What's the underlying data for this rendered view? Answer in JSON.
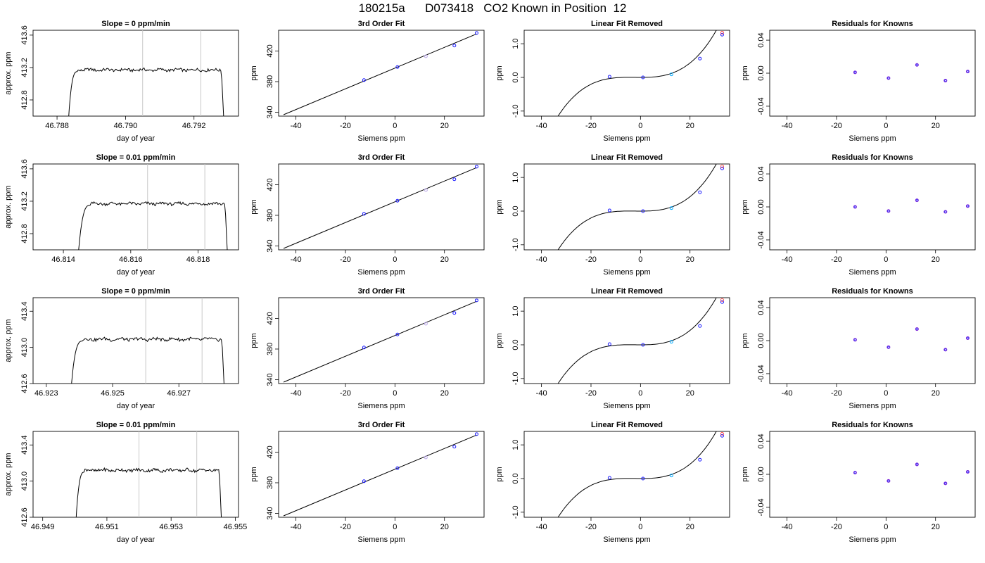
{
  "page_title": "180215a      D073418   CO2 Known in Position  12",
  "colors": {
    "curve": "#000000",
    "marker_light": "#b7a4e6",
    "grid_line": "#c8c8c8",
    "point": "#1a1aff",
    "point_accent": "#00aaff",
    "point_red": "#ff2a2a"
  },
  "rows": [
    {
      "raw": {
        "title": "Slope =  0  ppm/min",
        "xlabel": "day of year",
        "ylabel": "approx. ppm",
        "xlim": [
          46.7873,
          46.7933
        ],
        "ylim": [
          412.6,
          413.66
        ],
        "xticks": [
          46.788,
          46.79,
          46.792
        ],
        "xtick_labels": [
          "46.788",
          "46.790",
          "46.792"
        ],
        "yticks": [
          412.8,
          413.2,
          413.6
        ],
        "ytick_labels": [
          "412.8",
          "413.2",
          "413.6"
        ],
        "vlines": [
          46.7905,
          46.7922
        ],
        "plateau_x": [
          46.7886,
          46.7928
        ],
        "plateau_level": 413.17,
        "start_x": 46.7883,
        "end_x": 46.7929
      },
      "fit": {
        "title": "3rd Order Fit",
        "xlabel": "Siemens ppm",
        "ylabel": "ppm",
        "xlim": [
          -47,
          36
        ],
        "ylim": [
          335,
          447
        ],
        "xticks": [
          -40,
          -20,
          0,
          20
        ],
        "xtick_labels": [
          "-40",
          "-20",
          "0",
          "20"
        ],
        "yticks": [
          340,
          380,
          420
        ],
        "ytick_labels": [
          "340",
          "380",
          "420"
        ],
        "line_x": [
          -45,
          33
        ],
        "points": [
          {
            "x": -12.5,
            "y": 382
          },
          {
            "x": 1,
            "y": 399
          },
          {
            "x": 12.5,
            "y": 413
          },
          {
            "x": 24,
            "y": 427
          },
          {
            "x": 33,
            "y": 443.5
          }
        ]
      },
      "linear": {
        "title": "Linear Fit Removed",
        "xlabel": "Siemens ppm",
        "ylabel": "ppm",
        "xlim": [
          -47,
          36
        ],
        "ylim": [
          -1.15,
          1.4
        ],
        "xticks": [
          -40,
          -20,
          0,
          20
        ],
        "xtick_labels": [
          "-40",
          "-20",
          "0",
          "20"
        ],
        "yticks": [
          -1.0,
          0.0,
          1.0
        ],
        "ytick_labels": [
          "-1.0",
          "0.0",
          "1.0"
        ],
        "curve_x": [
          -45,
          33
        ],
        "points": [
          {
            "x": -12.5,
            "y": 0.02
          },
          {
            "x": 1,
            "y": 0.0
          },
          {
            "x": 12.5,
            "y": 0.09
          },
          {
            "x": 24,
            "y": 0.56
          },
          {
            "x": 33,
            "y": 1.27
          }
        ]
      },
      "resid": {
        "title": "Residuals for Knowns",
        "xlabel": "Siemens ppm",
        "ylabel": "ppm",
        "xlim": [
          -47,
          36
        ],
        "ylim": [
          -0.052,
          0.052
        ],
        "xticks": [
          -40,
          -20,
          0,
          20
        ],
        "xtick_labels": [
          "-40",
          "-20",
          "0",
          "20"
        ],
        "yticks": [
          -0.04,
          0.0,
          0.04
        ],
        "ytick_labels": [
          "-0.04",
          "0.00",
          "0.04"
        ],
        "points": [
          {
            "x": -12.5,
            "y": 0.001
          },
          {
            "x": 1,
            "y": -0.006
          },
          {
            "x": 12.5,
            "y": 0.01
          },
          {
            "x": 24,
            "y": -0.009
          },
          {
            "x": 33,
            "y": 0.002
          }
        ]
      }
    },
    {
      "raw": {
        "title": "Slope =  0.01  ppm/min",
        "xlabel": "day of year",
        "ylabel": "approx. ppm",
        "xlim": [
          46.8131,
          46.8192
        ],
        "ylim": [
          412.6,
          413.66
        ],
        "xticks": [
          46.814,
          46.816,
          46.818
        ],
        "xtick_labels": [
          "46.814",
          "46.816",
          "46.818"
        ],
        "yticks": [
          412.8,
          413.2,
          413.6
        ],
        "ytick_labels": [
          "412.8",
          "413.2",
          "413.6"
        ],
        "vlines": [
          46.8165,
          46.8182
        ],
        "plateau_x": [
          46.8148,
          46.8188
        ],
        "plateau_level": 413.17,
        "start_x": 46.8144,
        "end_x": 46.8189
      },
      "fit": {
        "title": "3rd Order Fit",
        "xlabel": "Siemens ppm",
        "ylabel": "ppm",
        "xlim": [
          -47,
          36
        ],
        "ylim": [
          335,
          447
        ],
        "xticks": [
          -40,
          -20,
          0,
          20
        ],
        "xtick_labels": [
          "-40",
          "-20",
          "0",
          "20"
        ],
        "yticks": [
          340,
          380,
          420
        ],
        "ytick_labels": [
          "340",
          "380",
          "420"
        ],
        "line_x": [
          -45,
          33
        ],
        "points": [
          {
            "x": -12.5,
            "y": 382
          },
          {
            "x": 1,
            "y": 399
          },
          {
            "x": 12.5,
            "y": 413
          },
          {
            "x": 24,
            "y": 427
          },
          {
            "x": 33,
            "y": 443.5
          }
        ]
      },
      "linear": {
        "title": "Linear Fit Removed",
        "xlabel": "Siemens ppm",
        "ylabel": "ppm",
        "xlim": [
          -47,
          36
        ],
        "ylim": [
          -1.15,
          1.4
        ],
        "xticks": [
          -40,
          -20,
          0,
          20
        ],
        "xtick_labels": [
          "-40",
          "-20",
          "0",
          "20"
        ],
        "yticks": [
          -1.0,
          0.0,
          1.0
        ],
        "ytick_labels": [
          "-1.0",
          "0.0",
          "1.0"
        ],
        "curve_x": [
          -45,
          33
        ],
        "points": [
          {
            "x": -12.5,
            "y": 0.02
          },
          {
            "x": 1,
            "y": 0.0
          },
          {
            "x": 12.5,
            "y": 0.09
          },
          {
            "x": 24,
            "y": 0.56
          },
          {
            "x": 33,
            "y": 1.27
          }
        ]
      },
      "resid": {
        "title": "Residuals for Knowns",
        "xlabel": "Siemens ppm",
        "ylabel": "ppm",
        "xlim": [
          -47,
          36
        ],
        "ylim": [
          -0.052,
          0.052
        ],
        "xticks": [
          -40,
          -20,
          0,
          20
        ],
        "xtick_labels": [
          "-40",
          "-20",
          "0",
          "20"
        ],
        "yticks": [
          -0.04,
          0.0,
          0.04
        ],
        "ytick_labels": [
          "-0.04",
          "0.00",
          "0.04"
        ],
        "points": [
          {
            "x": -12.5,
            "y": 0.0
          },
          {
            "x": 1,
            "y": -0.005
          },
          {
            "x": 12.5,
            "y": 0.008
          },
          {
            "x": 24,
            "y": -0.006
          },
          {
            "x": 33,
            "y": 0.001
          }
        ]
      }
    },
    {
      "raw": {
        "title": "Slope =  0  ppm/min",
        "xlabel": "day of year",
        "ylabel": "approx. ppm",
        "xlim": [
          46.9226,
          46.9288
        ],
        "ylim": [
          412.6,
          413.55
        ],
        "xticks": [
          46.923,
          46.925,
          46.927
        ],
        "xtick_labels": [
          "46.923",
          "46.925",
          "46.927"
        ],
        "yticks": [
          412.6,
          413.0,
          413.4
        ],
        "ytick_labels": [
          "412.6",
          "413.0",
          "413.4"
        ],
        "vlines": [
          46.926,
          46.9277
        ],
        "plateau_x": [
          46.9241,
          46.9283
        ],
        "plateau_level": 413.09,
        "start_x": 46.9237,
        "end_x": 46.9284
      },
      "fit": {
        "title": "3rd Order Fit",
        "xlabel": "Siemens ppm",
        "ylabel": "ppm",
        "xlim": [
          -47,
          36
        ],
        "ylim": [
          335,
          447
        ],
        "xticks": [
          -40,
          -20,
          0,
          20
        ],
        "xtick_labels": [
          "-40",
          "-20",
          "0",
          "20"
        ],
        "yticks": [
          340,
          380,
          420
        ],
        "ytick_labels": [
          "340",
          "380",
          "420"
        ],
        "line_x": [
          -45,
          33
        ],
        "points": [
          {
            "x": -12.5,
            "y": 382
          },
          {
            "x": 1,
            "y": 399
          },
          {
            "x": 12.5,
            "y": 413
          },
          {
            "x": 24,
            "y": 427
          },
          {
            "x": 33,
            "y": 443.5
          }
        ]
      },
      "linear": {
        "title": "Linear Fit Removed",
        "xlabel": "Siemens ppm",
        "ylabel": "ppm",
        "xlim": [
          -47,
          36
        ],
        "ylim": [
          -1.15,
          1.4
        ],
        "xticks": [
          -40,
          -20,
          0,
          20
        ],
        "xtick_labels": [
          "-40",
          "-20",
          "0",
          "20"
        ],
        "yticks": [
          -1.0,
          0.0,
          1.0
        ],
        "ytick_labels": [
          "-1.0",
          "0.0",
          "1.0"
        ],
        "curve_x": [
          -45,
          33
        ],
        "points": [
          {
            "x": -12.5,
            "y": 0.02
          },
          {
            "x": 1,
            "y": 0.0
          },
          {
            "x": 12.5,
            "y": 0.09
          },
          {
            "x": 24,
            "y": 0.56
          },
          {
            "x": 33,
            "y": 1.27
          }
        ]
      },
      "resid": {
        "title": "Residuals for Knowns",
        "xlabel": "Siemens ppm",
        "ylabel": "ppm",
        "xlim": [
          -47,
          36
        ],
        "ylim": [
          -0.052,
          0.052
        ],
        "xticks": [
          -40,
          -20,
          0,
          20
        ],
        "xtick_labels": [
          "-40",
          "-20",
          "0",
          "20"
        ],
        "yticks": [
          -0.04,
          0.0,
          0.04
        ],
        "ytick_labels": [
          "-0.04",
          "0.00",
          "0.04"
        ],
        "points": [
          {
            "x": -12.5,
            "y": 0.001
          },
          {
            "x": 1,
            "y": -0.008
          },
          {
            "x": 12.5,
            "y": 0.014
          },
          {
            "x": 24,
            "y": -0.011
          },
          {
            "x": 33,
            "y": 0.003
          }
        ]
      }
    },
    {
      "raw": {
        "title": "Slope =  0.01  ppm/min",
        "xlabel": "day of year",
        "ylabel": "approx. ppm",
        "xlim": [
          46.9487,
          46.9551
        ],
        "ylim": [
          412.6,
          413.55
        ],
        "xticks": [
          46.949,
          46.951,
          46.953,
          46.955
        ],
        "xtick_labels": [
          "46.949",
          "46.951",
          "46.953",
          "46.955"
        ],
        "yticks": [
          412.6,
          413.0,
          413.4
        ],
        "ytick_labels": [
          "412.6",
          "413.0",
          "413.4"
        ],
        "vlines": [
          46.952,
          46.9538
        ],
        "plateau_x": [
          46.9503,
          46.9545
        ],
        "plateau_level": 413.12,
        "start_x": 46.95,
        "end_x": 46.9546
      },
      "fit": {
        "title": "3rd Order Fit",
        "xlabel": "Siemens ppm",
        "ylabel": "ppm",
        "xlim": [
          -47,
          36
        ],
        "ylim": [
          335,
          447
        ],
        "xticks": [
          -40,
          -20,
          0,
          20
        ],
        "xtick_labels": [
          "-40",
          "-20",
          "0",
          "20"
        ],
        "yticks": [
          340,
          380,
          420
        ],
        "ytick_labels": [
          "340",
          "380",
          "420"
        ],
        "line_x": [
          -45,
          33
        ],
        "points": [
          {
            "x": -12.5,
            "y": 382
          },
          {
            "x": 1,
            "y": 399
          },
          {
            "x": 12.5,
            "y": 413
          },
          {
            "x": 24,
            "y": 427
          },
          {
            "x": 33,
            "y": 443.5
          }
        ]
      },
      "linear": {
        "title": "Linear Fit Removed",
        "xlabel": "Siemens ppm",
        "ylabel": "ppm",
        "xlim": [
          -47,
          36
        ],
        "ylim": [
          -1.15,
          1.4
        ],
        "xticks": [
          -40,
          -20,
          0,
          20
        ],
        "xtick_labels": [
          "-40",
          "-20",
          "0",
          "20"
        ],
        "yticks": [
          -1.0,
          0.0,
          1.0
        ],
        "ytick_labels": [
          "-1.0",
          "0.0",
          "1.0"
        ],
        "curve_x": [
          -45,
          33
        ],
        "points": [
          {
            "x": -12.5,
            "y": 0.02
          },
          {
            "x": 1,
            "y": 0.0
          },
          {
            "x": 12.5,
            "y": 0.09
          },
          {
            "x": 24,
            "y": 0.56
          },
          {
            "x": 33,
            "y": 1.27
          }
        ]
      },
      "resid": {
        "title": "Residuals for Knowns",
        "xlabel": "Siemens ppm",
        "ylabel": "ppm",
        "xlim": [
          -47,
          36
        ],
        "ylim": [
          -0.052,
          0.052
        ],
        "xticks": [
          -40,
          -20,
          0,
          20
        ],
        "xtick_labels": [
          "-40",
          "-20",
          "0",
          "20"
        ],
        "yticks": [
          -0.04,
          0.0,
          0.04
        ],
        "ytick_labels": [
          "-0.04",
          "0.00",
          "0.04"
        ],
        "points": [
          {
            "x": -12.5,
            "y": 0.002
          },
          {
            "x": 1,
            "y": -0.008
          },
          {
            "x": 12.5,
            "y": 0.012
          },
          {
            "x": 24,
            "y": -0.011
          },
          {
            "x": 33,
            "y": 0.003
          }
        ]
      }
    }
  ]
}
